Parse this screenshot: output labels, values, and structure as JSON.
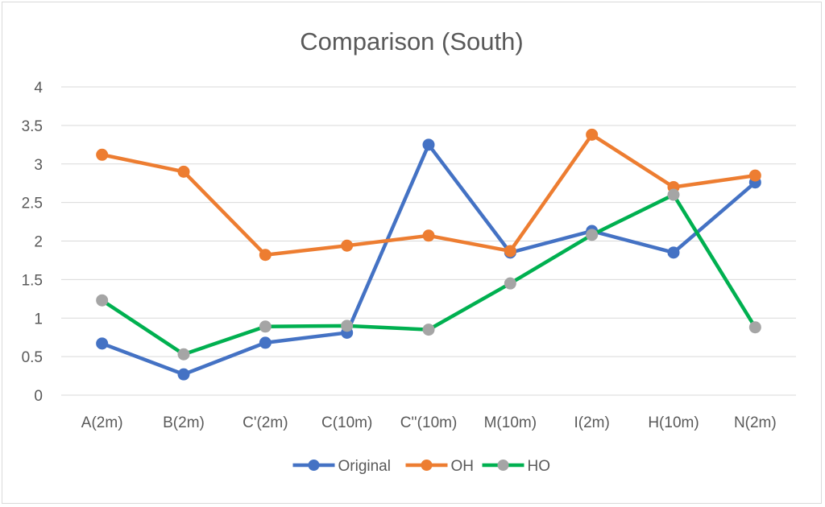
{
  "chart_data": {
    "type": "line",
    "title": "Comparison (South)",
    "xlabel": "",
    "ylabel": "",
    "categories": [
      "A(2m)",
      "B(2m)",
      "C'(2m)",
      "C(10m)",
      "C''(10m)",
      "M(10m)",
      "I(2m)",
      "H(10m)",
      "N(2m)"
    ],
    "ylim": [
      0,
      4
    ],
    "yticks": [
      "0",
      "0.5",
      "1",
      "1.5",
      "2",
      "2.5",
      "3",
      "3.5",
      "4"
    ],
    "grid": true,
    "legend_position": "bottom",
    "series": [
      {
        "name": "Original",
        "color": "#4472C4",
        "values": [
          0.67,
          0.27,
          0.68,
          0.81,
          3.25,
          1.85,
          2.13,
          1.85,
          2.76
        ]
      },
      {
        "name": "OH",
        "color": "#ED7D31",
        "values": [
          3.12,
          2.9,
          1.82,
          1.94,
          2.07,
          1.87,
          3.38,
          2.7,
          2.85
        ]
      },
      {
        "name": "HO",
        "color": "#00B050",
        "marker_color": "#A5A5A5",
        "values": [
          1.23,
          0.53,
          0.89,
          0.9,
          0.85,
          1.45,
          2.08,
          2.6,
          0.88
        ]
      }
    ]
  }
}
